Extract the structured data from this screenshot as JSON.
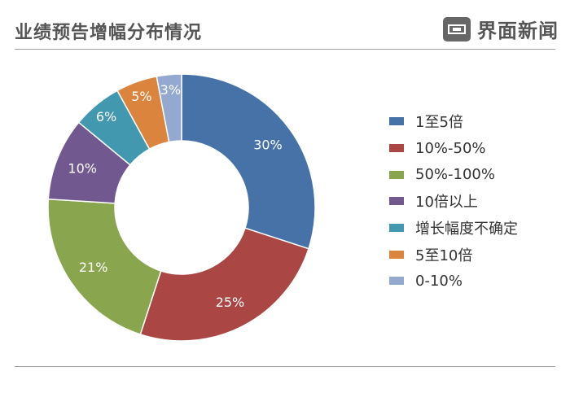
{
  "header": {
    "title": "业绩预告增幅分布情况",
    "brand": "界面新闻"
  },
  "chart_data": {
    "type": "pie",
    "donut": true,
    "categories": [
      "1至5倍",
      "10%-50%",
      "50%-100%",
      "10倍以上",
      "增长幅度不确定",
      "5至10倍",
      "0-10%"
    ],
    "values": [
      30,
      25,
      21,
      10,
      6,
      5,
      3
    ],
    "labels": [
      "30%",
      "25%",
      "21%",
      "10%",
      "6%",
      "5%",
      "3%"
    ],
    "colors": [
      "#4672a8",
      "#aa4643",
      "#89a54e",
      "#71588f",
      "#4198af",
      "#db843d",
      "#93a9cf"
    ],
    "legend": "right"
  }
}
